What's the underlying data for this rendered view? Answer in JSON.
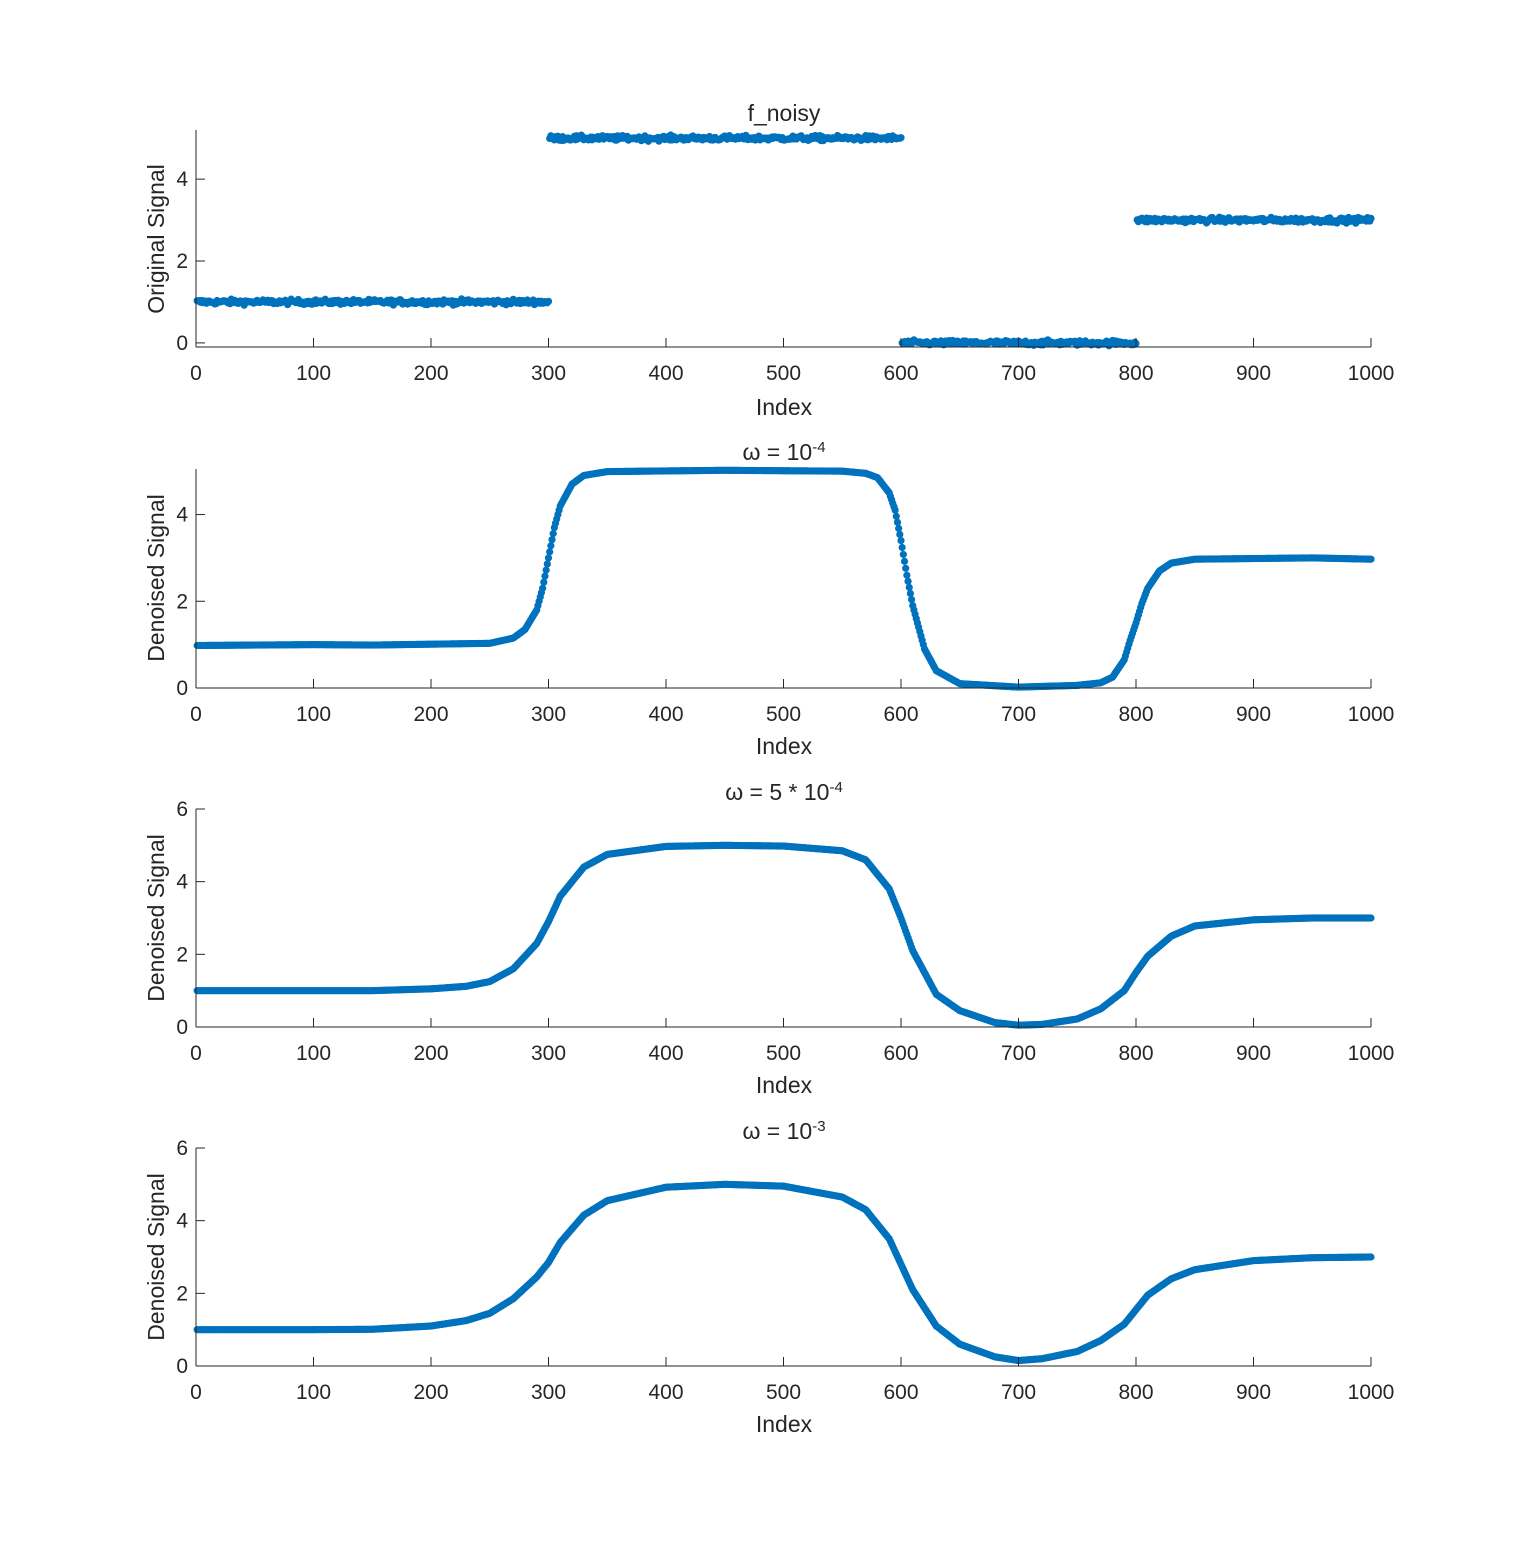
{
  "figure": {
    "marker_color": "#0072BD",
    "axis_color": "#262626"
  },
  "chart_data": [
    {
      "type": "scatter",
      "title": "f_noisy",
      "title_parts": {
        "base": "f_noisy",
        "exponent": ""
      },
      "xlabel": "Index",
      "ylabel": "Original Signal",
      "xlim": [
        0,
        1000
      ],
      "ylim": [
        -0.1,
        5.2
      ],
      "xticks": [
        0,
        100,
        200,
        300,
        400,
        500,
        600,
        700,
        800,
        900,
        1000
      ],
      "yticks": [
        0,
        2,
        4
      ],
      "grid": false,
      "series": [
        {
          "x": [
            0,
            300,
            300,
            600,
            600,
            800,
            800,
            1000
          ],
          "y": [
            1,
            1,
            5,
            5,
            0,
            0,
            3,
            3
          ],
          "noise_amplitude": 0.06
        }
      ]
    },
    {
      "type": "scatter",
      "title": "ω = 10-4",
      "title_parts": {
        "base": "ω = 10",
        "exponent": "-4"
      },
      "xlabel": "Index",
      "ylabel": "Denoised Signal",
      "xlim": [
        0,
        1000
      ],
      "ylim": [
        0,
        5.05
      ],
      "xticks": [
        0,
        100,
        200,
        300,
        400,
        500,
        600,
        700,
        800,
        900,
        1000
      ],
      "yticks": [
        0,
        2,
        4
      ],
      "grid": false,
      "series": [
        {
          "x": [
            0,
            100,
            150,
            250,
            270,
            280,
            290,
            295,
            300,
            305,
            310,
            320,
            330,
            350,
            450,
            550,
            570,
            580,
            590,
            595,
            600,
            605,
            610,
            620,
            630,
            650,
            700,
            750,
            770,
            780,
            790,
            795,
            800,
            805,
            810,
            820,
            830,
            850,
            950,
            1000
          ],
          "y": [
            0.98,
            1.0,
            0.99,
            1.03,
            1.15,
            1.35,
            1.8,
            2.3,
            3.0,
            3.7,
            4.2,
            4.7,
            4.9,
            4.99,
            5.02,
            5.0,
            4.95,
            4.85,
            4.5,
            4.1,
            3.4,
            2.6,
            1.9,
            0.9,
            0.4,
            0.1,
            0.02,
            0.06,
            0.12,
            0.25,
            0.65,
            1.1,
            1.5,
            1.95,
            2.3,
            2.7,
            2.88,
            2.97,
            3.0,
            2.97
          ]
        }
      ]
    },
    {
      "type": "scatter",
      "title": "ω = 5 * 10-4",
      "title_parts": {
        "base": "ω = 5 * 10",
        "exponent": "-4"
      },
      "xlabel": "Index",
      "ylabel": "Denoised Signal",
      "xlim": [
        0,
        1000
      ],
      "ylim": [
        0,
        6
      ],
      "xticks": [
        0,
        100,
        200,
        300,
        400,
        500,
        600,
        700,
        800,
        900,
        1000
      ],
      "yticks": [
        0,
        2,
        4,
        6
      ],
      "grid": false,
      "series": [
        {
          "x": [
            0,
            100,
            150,
            200,
            230,
            250,
            270,
            290,
            300,
            310,
            330,
            350,
            400,
            450,
            500,
            550,
            570,
            590,
            600,
            610,
            630,
            650,
            680,
            700,
            720,
            750,
            770,
            790,
            800,
            810,
            830,
            850,
            900,
            950,
            1000
          ],
          "y": [
            1.0,
            1.0,
            1.0,
            1.05,
            1.12,
            1.25,
            1.6,
            2.3,
            2.9,
            3.6,
            4.4,
            4.75,
            4.97,
            5.0,
            4.98,
            4.85,
            4.6,
            3.8,
            3.0,
            2.1,
            0.9,
            0.45,
            0.12,
            0.05,
            0.07,
            0.22,
            0.5,
            1.0,
            1.5,
            1.95,
            2.5,
            2.78,
            2.95,
            3.0,
            3.0
          ]
        }
      ]
    },
    {
      "type": "scatter",
      "title": "ω = 10-3",
      "title_parts": {
        "base": "ω = 10",
        "exponent": "-3"
      },
      "xlabel": "Index",
      "ylabel": "Denoised Signal",
      "xlim": [
        0,
        1000
      ],
      "ylim": [
        0,
        6
      ],
      "xticks": [
        0,
        100,
        200,
        300,
        400,
        500,
        600,
        700,
        800,
        900,
        1000
      ],
      "yticks": [
        0,
        2,
        4,
        6
      ],
      "grid": false,
      "series": [
        {
          "x": [
            0,
            100,
            150,
            200,
            230,
            250,
            270,
            290,
            300,
            310,
            330,
            350,
            400,
            450,
            500,
            550,
            570,
            590,
            600,
            610,
            630,
            650,
            680,
            700,
            720,
            750,
            770,
            790,
            800,
            810,
            830,
            850,
            900,
            950,
            1000
          ],
          "y": [
            1.0,
            1.0,
            1.01,
            1.1,
            1.25,
            1.45,
            1.85,
            2.45,
            2.85,
            3.4,
            4.15,
            4.55,
            4.92,
            5.0,
            4.95,
            4.65,
            4.3,
            3.5,
            2.8,
            2.1,
            1.1,
            0.6,
            0.25,
            0.15,
            0.2,
            0.4,
            0.7,
            1.15,
            1.55,
            1.95,
            2.4,
            2.65,
            2.9,
            2.98,
            3.0
          ]
        }
      ]
    }
  ]
}
